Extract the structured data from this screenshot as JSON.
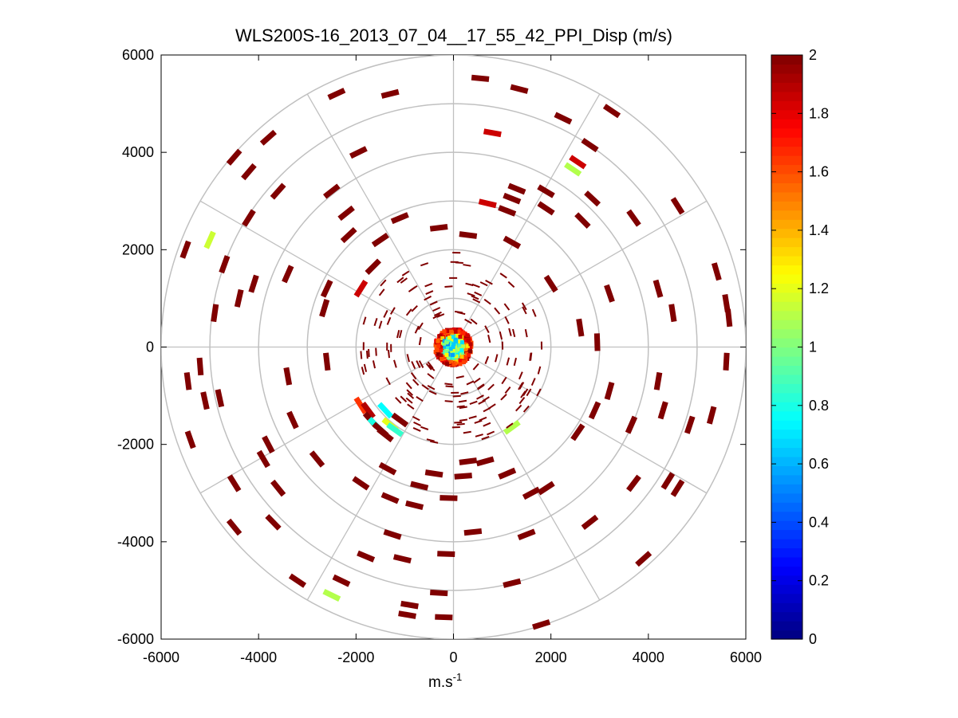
{
  "chart_data": {
    "type": "polar-ppi-scatter",
    "title": "WLS200S-16_2013_07_04__17_55_42_PPI_Disp (m/s)",
    "xlabel": "m.s",
    "xlabel_superscript": "-1",
    "ylabel": "",
    "xlim": [
      -6000,
      6000
    ],
    "ylim": [
      -6000,
      6000
    ],
    "xticks": [
      -6000,
      -4000,
      -2000,
      0,
      2000,
      4000,
      6000
    ],
    "yticks": [
      6000,
      4000,
      2000,
      0,
      -2000,
      -4000,
      -6000
    ],
    "xtick_labels": [
      "-6000",
      "-4000",
      "-2000",
      "0",
      "2000",
      "4000",
      "6000"
    ],
    "ytick_labels": [
      "6000",
      "4000",
      "2000",
      "0",
      "-2000",
      "-4000",
      "-6000"
    ],
    "polar_grid": {
      "range_rings_m": [
        1000,
        2000,
        3000,
        4000,
        5000,
        6000
      ],
      "spoke_angles_deg": [
        0,
        30,
        60,
        90,
        120,
        150,
        180,
        210,
        240,
        270,
        300,
        330
      ]
    },
    "colorbar": {
      "min": 0,
      "max": 2,
      "ticks": [
        0,
        0.2,
        0.4,
        0.6,
        0.8,
        1,
        1.2,
        1.4,
        1.6,
        1.8,
        2
      ],
      "tick_labels": [
        "0",
        "0.2",
        "0.4",
        "0.6",
        "0.8",
        "1",
        "1.2",
        "1.4",
        "1.6",
        "1.8",
        "2"
      ],
      "colormap": "jet"
    },
    "points": [
      {
        "x": -2400,
        "y": 5200,
        "v": 2
      },
      {
        "x": -1300,
        "y": 5200,
        "v": 2
      },
      {
        "x": 550,
        "y": 5520,
        "v": 2
      },
      {
        "x": 1350,
        "y": 5300,
        "v": 2
      },
      {
        "x": 3250,
        "y": 4850,
        "v": 2
      },
      {
        "x": 2250,
        "y": 4700,
        "v": 2
      },
      {
        "x": 800,
        "y": 4400,
        "v": 1.85
      },
      {
        "x": 2800,
        "y": 4150,
        "v": 2
      },
      {
        "x": 2550,
        "y": 3800,
        "v": 1.85
      },
      {
        "x": 2450,
        "y": 3650,
        "v": 1.1
      },
      {
        "x": -3800,
        "y": 4300,
        "v": 2
      },
      {
        "x": -4500,
        "y": 3900,
        "v": 2
      },
      {
        "x": -4200,
        "y": 3600,
        "v": 2
      },
      {
        "x": -1950,
        "y": 4000,
        "v": 2
      },
      {
        "x": -3600,
        "y": 3200,
        "v": 2
      },
      {
        "x": -2500,
        "y": 3200,
        "v": 2
      },
      {
        "x": 1300,
        "y": 3250,
        "v": 2
      },
      {
        "x": 1900,
        "y": 3200,
        "v": 2
      },
      {
        "x": 2850,
        "y": 3050,
        "v": 2
      },
      {
        "x": 4600,
        "y": 2900,
        "v": 2
      },
      {
        "x": 1200,
        "y": 3050,
        "v": 2
      },
      {
        "x": 700,
        "y": 2950,
        "v": 1.85
      },
      {
        "x": 1100,
        "y": 2800,
        "v": 2
      },
      {
        "x": -2200,
        "y": 2750,
        "v": 2
      },
      {
        "x": -1100,
        "y": 2650,
        "v": 2
      },
      {
        "x": 1900,
        "y": 2850,
        "v": 2
      },
      {
        "x": 3700,
        "y": 2650,
        "v": 2
      },
      {
        "x": 2650,
        "y": 2600,
        "v": 2
      },
      {
        "x": -4200,
        "y": 2650,
        "v": 2
      },
      {
        "x": -5000,
        "y": 2200,
        "v": 1.15
      },
      {
        "x": -5500,
        "y": 2000,
        "v": 2
      },
      {
        "x": -2150,
        "y": 2300,
        "v": 2
      },
      {
        "x": -1500,
        "y": 2200,
        "v": 2
      },
      {
        "x": -300,
        "y": 2450,
        "v": 2
      },
      {
        "x": 300,
        "y": 2300,
        "v": 2
      },
      {
        "x": 1200,
        "y": 2150,
        "v": 2
      },
      {
        "x": -1650,
        "y": 1650,
        "v": 2
      },
      {
        "x": -4700,
        "y": 1700,
        "v": 2
      },
      {
        "x": -4100,
        "y": 1300,
        "v": 2
      },
      {
        "x": -4400,
        "y": 1000,
        "v": 2
      },
      {
        "x": -3400,
        "y": 1500,
        "v": 2
      },
      {
        "x": -1900,
        "y": 1200,
        "v": 1.85
      },
      {
        "x": -2600,
        "y": 1200,
        "v": 2
      },
      {
        "x": -4900,
        "y": 700,
        "v": 2
      },
      {
        "x": 5400,
        "y": 1550,
        "v": 2
      },
      {
        "x": 4200,
        "y": 1200,
        "v": 2
      },
      {
        "x": 3200,
        "y": 1100,
        "v": 2
      },
      {
        "x": 5600,
        "y": 900,
        "v": 2
      },
      {
        "x": 4500,
        "y": 700,
        "v": 2
      },
      {
        "x": 2000,
        "y": 1300,
        "v": 2
      },
      {
        "x": 5650,
        "y": 600,
        "v": 2
      },
      {
        "x": -2650,
        "y": 800,
        "v": 2
      },
      {
        "x": 2600,
        "y": 400,
        "v": 2
      },
      {
        "x": 2950,
        "y": 100,
        "v": 2
      },
      {
        "x": -5200,
        "y": -400,
        "v": 2
      },
      {
        "x": -5450,
        "y": -700,
        "v": 2
      },
      {
        "x": -2600,
        "y": -300,
        "v": 2
      },
      {
        "x": -3400,
        "y": -600,
        "v": 2
      },
      {
        "x": -4800,
        "y": -1050,
        "v": 2
      },
      {
        "x": -5100,
        "y": -1100,
        "v": 2
      },
      {
        "x": 5600,
        "y": -300,
        "v": 2
      },
      {
        "x": 4200,
        "y": -700,
        "v": 2
      },
      {
        "x": 3200,
        "y": -900,
        "v": 2
      },
      {
        "x": 5300,
        "y": -1400,
        "v": 2
      },
      {
        "x": 4300,
        "y": -1300,
        "v": 2
      },
      {
        "x": 2900,
        "y": -1300,
        "v": 2
      },
      {
        "x": 4850,
        "y": -1600,
        "v": 2
      },
      {
        "x": 3650,
        "y": -1600,
        "v": 2
      },
      {
        "x": 2550,
        "y": -1750,
        "v": 2
      },
      {
        "x": -3300,
        "y": -1500,
        "v": 2
      },
      {
        "x": -1900,
        "y": -1200,
        "v": 1.65
      },
      {
        "x": -1750,
        "y": -1300,
        "v": 1.9
      },
      {
        "x": -1700,
        "y": -1500,
        "v": 2
      },
      {
        "x": -1600,
        "y": -1600,
        "v": 0.8
      },
      {
        "x": -1500,
        "y": -1700,
        "v": 2
      },
      {
        "x": -1400,
        "y": -1800,
        "v": 2
      },
      {
        "x": -1300,
        "y": -1600,
        "v": 1.2
      },
      {
        "x": -1400,
        "y": -1300,
        "v": 0.75
      },
      {
        "x": -1200,
        "y": -1700,
        "v": 0.85
      },
      {
        "x": -1100,
        "y": -1500,
        "v": 2
      },
      {
        "x": -5400,
        "y": -1900,
        "v": 2
      },
      {
        "x": -3800,
        "y": -2000,
        "v": 2
      },
      {
        "x": -3900,
        "y": -2300,
        "v": 2
      },
      {
        "x": -2800,
        "y": -2300,
        "v": 2
      },
      {
        "x": 300,
        "y": -2350,
        "v": 2
      },
      {
        "x": 650,
        "y": -2350,
        "v": 2
      },
      {
        "x": -1350,
        "y": -2500,
        "v": 2
      },
      {
        "x": 1100,
        "y": -2600,
        "v": 2
      },
      {
        "x": 3700,
        "y": -2800,
        "v": 2
      },
      {
        "x": 4400,
        "y": -2750,
        "v": 2
      },
      {
        "x": 4600,
        "y": -2900,
        "v": 2
      },
      {
        "x": -4500,
        "y": -2800,
        "v": 2
      },
      {
        "x": -3600,
        "y": -2900,
        "v": 2
      },
      {
        "x": -1900,
        "y": -2800,
        "v": 2
      },
      {
        "x": 200,
        "y": -2650,
        "v": 2
      },
      {
        "x": -400,
        "y": -2600,
        "v": 2
      },
      {
        "x": -700,
        "y": -2850,
        "v": 2
      },
      {
        "x": 1900,
        "y": -2900,
        "v": 2
      },
      {
        "x": 1600,
        "y": -3000,
        "v": 2
      },
      {
        "x": -1300,
        "y": -3100,
        "v": 2
      },
      {
        "x": -800,
        "y": -3250,
        "v": 2
      },
      {
        "x": -100,
        "y": -3100,
        "v": 2
      },
      {
        "x": -4500,
        "y": -3700,
        "v": 2
      },
      {
        "x": -3700,
        "y": -3600,
        "v": 2
      },
      {
        "x": -1250,
        "y": -3850,
        "v": 2
      },
      {
        "x": 400,
        "y": -3800,
        "v": 2
      },
      {
        "x": 1500,
        "y": -3850,
        "v": 2
      },
      {
        "x": 2800,
        "y": -3600,
        "v": 2
      },
      {
        "x": -1800,
        "y": -4300,
        "v": 2
      },
      {
        "x": -1050,
        "y": -4350,
        "v": 2
      },
      {
        "x": -150,
        "y": -4250,
        "v": 2
      },
      {
        "x": 3900,
        "y": -4350,
        "v": 2
      },
      {
        "x": -3200,
        "y": -4800,
        "v": 2
      },
      {
        "x": -2300,
        "y": -4800,
        "v": 2
      },
      {
        "x": -2500,
        "y": -5100,
        "v": 1.1
      },
      {
        "x": -300,
        "y": -5050,
        "v": 2
      },
      {
        "x": 1200,
        "y": -4850,
        "v": 2
      },
      {
        "x": -900,
        "y": -5300,
        "v": 2
      },
      {
        "x": -950,
        "y": -5500,
        "v": 2
      },
      {
        "x": -200,
        "y": -5550,
        "v": 2
      },
      {
        "x": 1800,
        "y": -5700,
        "v": 2
      },
      {
        "x": 1200,
        "y": -1650,
        "v": 1.1
      }
    ]
  }
}
